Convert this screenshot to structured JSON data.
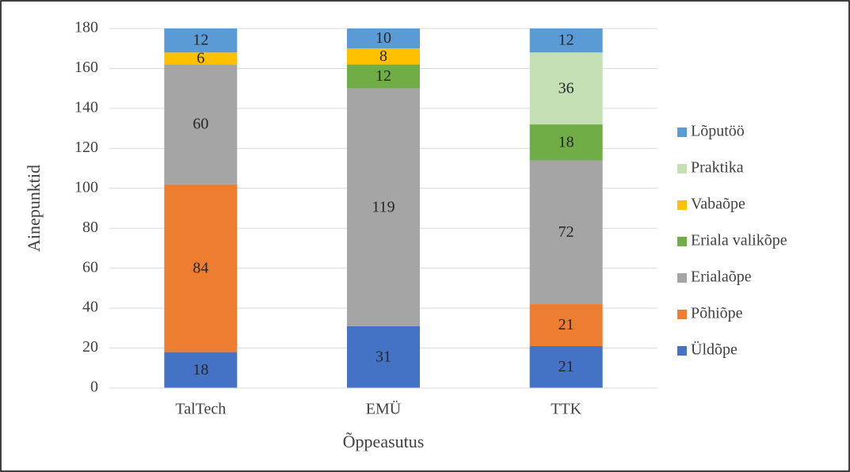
{
  "chart_data": {
    "type": "stacked_bar",
    "categories": [
      "TalTech",
      "EMÜ",
      "TTK"
    ],
    "series": [
      {
        "name": "Üldõpe",
        "color": "#4472c4",
        "values": [
          18,
          31,
          21
        ]
      },
      {
        "name": "Põhiõpe",
        "color": "#ed7d31",
        "values": [
          84,
          null,
          21
        ]
      },
      {
        "name": "Erialaõpe",
        "color": "#a5a5a5",
        "values": [
          60,
          119,
          72
        ]
      },
      {
        "name": "Eriala valikõpe",
        "color": "#70ad47",
        "values": [
          null,
          12,
          18
        ]
      },
      {
        "name": "Vabaõpe",
        "color": "#ffc000",
        "values": [
          6,
          8,
          null
        ]
      },
      {
        "name": "Praktika",
        "color": "#c5e0b4",
        "values": [
          null,
          null,
          36
        ]
      },
      {
        "name": "Lõputöö",
        "color": "#5b9bd5",
        "values": [
          12,
          10,
          12
        ]
      }
    ],
    "ylim": [
      0,
      180
    ],
    "yticks": [
      0,
      20,
      40,
      60,
      80,
      100,
      120,
      140,
      160,
      180
    ],
    "ylabel": "Ainepunktid",
    "xlabel": "Õppeasutus",
    "grid": true,
    "legend": "right"
  }
}
